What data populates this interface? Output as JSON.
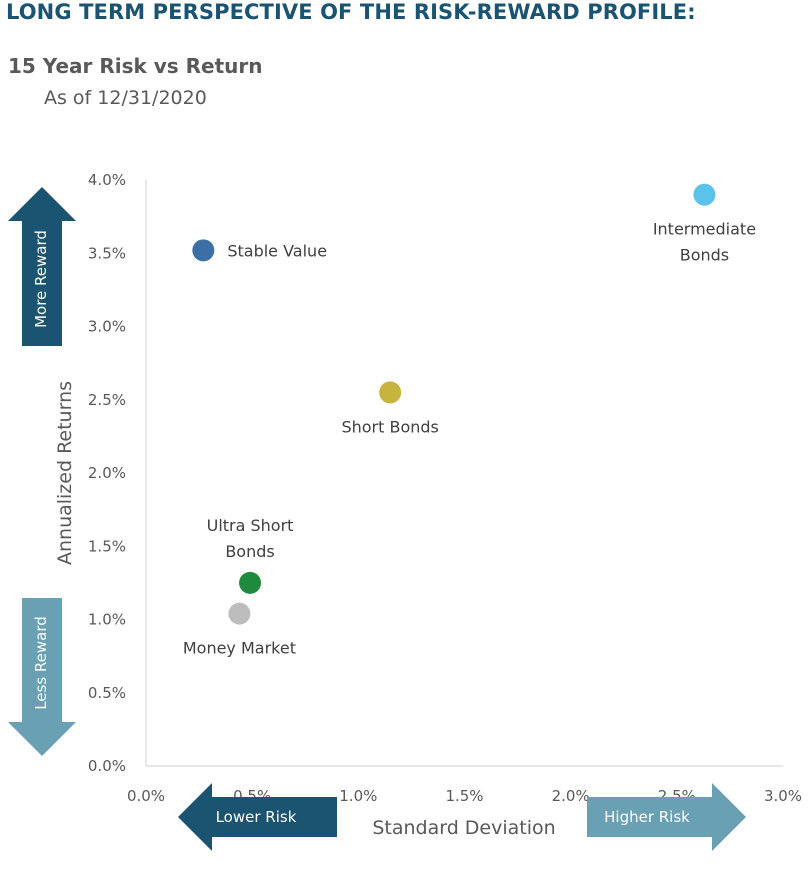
{
  "header": {
    "title": "LONG TERM PERSPECTIVE OF THE RISK-REWARD PROFILE:",
    "subtitle": "15 Year Risk vs Return",
    "as_of": "As of 12/31/2020"
  },
  "chart_data": {
    "type": "scatter",
    "xlabel": "Standard Deviation",
    "ylabel": "Annualized Returns",
    "xlim": [
      0,
      3.0
    ],
    "ylim": [
      0,
      4.0
    ],
    "x_ticks": [
      "0.0%",
      "0.5%",
      "1.0%",
      "1.5%",
      "2.0%",
      "2.5%",
      "3.0%"
    ],
    "y_ticks": [
      "0.0%",
      "0.5%",
      "1.0%",
      "1.5%",
      "2.0%",
      "2.5%",
      "3.0%",
      "3.5%",
      "4.0%"
    ],
    "grid": false,
    "points": [
      {
        "label": [
          "Stable Value"
        ],
        "x": 0.27,
        "y": 3.52,
        "color": "#3c6fa6",
        "label_pos": "right"
      },
      {
        "label": [
          "Intermediate",
          "Bonds"
        ],
        "x": 2.63,
        "y": 3.9,
        "color": "#5bc2ec",
        "label_pos": "below"
      },
      {
        "label": [
          "Short Bonds"
        ],
        "x": 1.15,
        "y": 2.55,
        "color": "#c6b43e",
        "label_pos": "below"
      },
      {
        "label": [
          "Ultra Short",
          "Bonds"
        ],
        "x": 0.49,
        "y": 1.25,
        "color": "#1f8a3e",
        "label_pos": "above"
      },
      {
        "label": [
          "Money Market"
        ],
        "x": 0.44,
        "y": 1.04,
        "color": "#bdbdbd",
        "label_pos": "below"
      }
    ]
  },
  "arrows": {
    "more_reward": "More Reward",
    "less_reward": "Less Reward",
    "lower_risk": "Lower Risk",
    "higher_risk": "Higher Risk",
    "dark_color": "#1b5470",
    "light_color": "#6aa0b3"
  }
}
